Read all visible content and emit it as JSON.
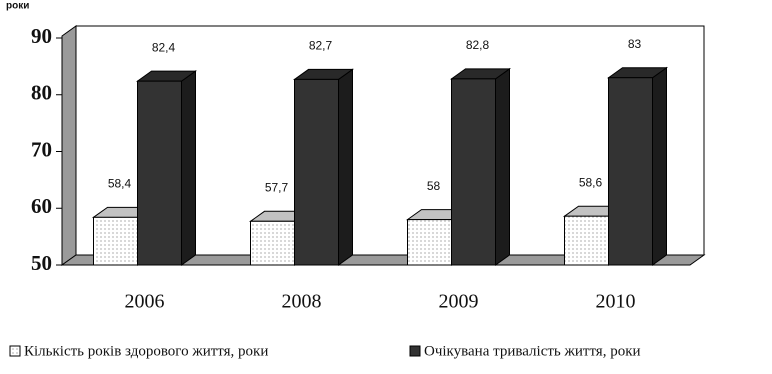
{
  "chart_data": {
    "type": "bar3d",
    "y_label": "роки",
    "categories": [
      "2006",
      "2008",
      "2009",
      "2010"
    ],
    "series": [
      {
        "name": "Кількість років здорового життя, роки",
        "color": "#f2f2f2",
        "values": [
          58.4,
          57.7,
          58,
          58.6
        ],
        "value_labels": [
          "58,4",
          "57,7",
          "58",
          "58,6"
        ]
      },
      {
        "name": "Очікувана тривалість життя, роки",
        "color": "#333333",
        "values": [
          82.4,
          82.7,
          82.8,
          83
        ],
        "value_labels": [
          "82,4",
          "82,7",
          "82,8",
          "83"
        ]
      }
    ],
    "ylim": [
      50,
      90
    ],
    "yticks": [
      50,
      60,
      70,
      80,
      90
    ],
    "grid": false
  }
}
